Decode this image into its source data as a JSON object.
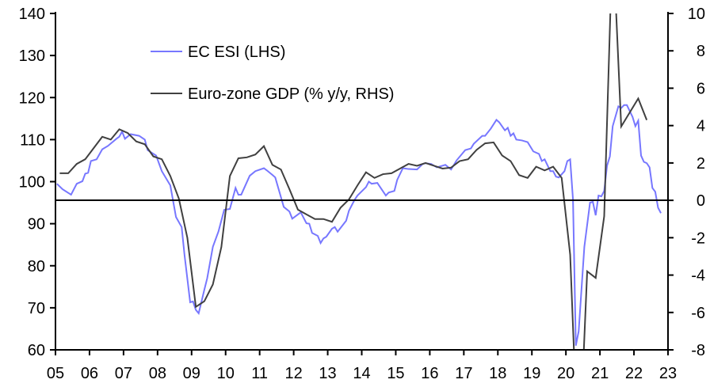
{
  "chart_data": {
    "type": "line",
    "title": "",
    "legend_placement": "top-left",
    "grid": false,
    "x_axis": {
      "range": [
        "2005-01",
        "2023-01"
      ],
      "tick_labels": [
        "05",
        "06",
        "07",
        "08",
        "09",
        "10",
        "11",
        "12",
        "13",
        "14",
        "15",
        "16",
        "17",
        "18",
        "19",
        "20",
        "21",
        "22",
        "23"
      ]
    },
    "y_left": {
      "range": [
        60,
        140
      ],
      "tick_labels": [
        "140",
        "130",
        "120",
        "110",
        "100",
        "90",
        "80",
        "70",
        "60"
      ]
    },
    "y_right": {
      "range": [
        -8,
        10
      ],
      "tick_labels": [
        "10",
        "8",
        "6",
        "4",
        "2",
        "0",
        "-2",
        "-4",
        "-6",
        "-8"
      ],
      "zero_line": true
    },
    "series": [
      {
        "name": "EC ESI (LHS)",
        "axis": "left",
        "color": "#7777ff",
        "frequency": "monthly",
        "points": [
          [
            "2005-01",
            99.5
          ],
          [
            "2005-03",
            98.2
          ],
          [
            "2005-06",
            96.9
          ],
          [
            "2005-08",
            99.5
          ],
          [
            "2005-10",
            100.1
          ],
          [
            "2005-11",
            101.9
          ],
          [
            "2005-12",
            102.1
          ],
          [
            "2006-01",
            104.9
          ],
          [
            "2006-03",
            105.3
          ],
          [
            "2006-05",
            107.7
          ],
          [
            "2006-07",
            108.5
          ],
          [
            "2006-10",
            110.2
          ],
          [
            "2006-11",
            110.7
          ],
          [
            "2006-12",
            111.9
          ],
          [
            "2007-01",
            110.2
          ],
          [
            "2007-03",
            111.3
          ],
          [
            "2007-06",
            110.9
          ],
          [
            "2007-08",
            110.0
          ],
          [
            "2007-09",
            107.5
          ],
          [
            "2007-12",
            106.2
          ],
          [
            "2008-02",
            102.5
          ],
          [
            "2008-05",
            99.1
          ],
          [
            "2008-07",
            91.6
          ],
          [
            "2008-09",
            89.2
          ],
          [
            "2008-10",
            82.6
          ],
          [
            "2008-12",
            71.3
          ],
          [
            "2009-01",
            71.5
          ],
          [
            "2009-02",
            69.5
          ],
          [
            "2009-03",
            68.7
          ],
          [
            "2009-05",
            74.3
          ],
          [
            "2009-06",
            77.0
          ],
          [
            "2009-08",
            84.5
          ],
          [
            "2009-10",
            88.2
          ],
          [
            "2009-12",
            93.3
          ],
          [
            "2010-02",
            93.5
          ],
          [
            "2010-04",
            98.5
          ],
          [
            "2010-05",
            96.9
          ],
          [
            "2010-06",
            96.9
          ],
          [
            "2010-09",
            101.4
          ],
          [
            "2010-11",
            102.5
          ],
          [
            "2011-02",
            103.2
          ],
          [
            "2011-03",
            102.7
          ],
          [
            "2011-05",
            101.6
          ],
          [
            "2011-06",
            101.0
          ],
          [
            "2011-09",
            94.0
          ],
          [
            "2011-11",
            92.9
          ],
          [
            "2011-12",
            91.2
          ],
          [
            "2012-03",
            92.7
          ],
          [
            "2012-05",
            90.1
          ],
          [
            "2012-06",
            90.0
          ],
          [
            "2012-07",
            87.8
          ],
          [
            "2012-09",
            87.1
          ],
          [
            "2012-10",
            85.4
          ],
          [
            "2012-11",
            86.5
          ],
          [
            "2012-12",
            86.9
          ],
          [
            "2013-02",
            88.8
          ],
          [
            "2013-03",
            89.2
          ],
          [
            "2013-04",
            88.1
          ],
          [
            "2013-07",
            90.7
          ],
          [
            "2013-08",
            93.1
          ],
          [
            "2013-10",
            95.7
          ],
          [
            "2013-11",
            96.7
          ],
          [
            "2014-02",
            98.7
          ],
          [
            "2014-03",
            100.0
          ],
          [
            "2014-04",
            99.5
          ],
          [
            "2014-06",
            99.7
          ],
          [
            "2014-07",
            98.7
          ],
          [
            "2014-09",
            96.7
          ],
          [
            "2014-10",
            97.4
          ],
          [
            "2014-12",
            97.8
          ],
          [
            "2015-01",
            100.4
          ],
          [
            "2015-03",
            103.2
          ],
          [
            "2015-05",
            103.0
          ],
          [
            "2015-08",
            102.9
          ],
          [
            "2015-10",
            104.2
          ],
          [
            "2015-11",
            104.4
          ],
          [
            "2016-01",
            104.2
          ],
          [
            "2016-03",
            103.4
          ],
          [
            "2016-05",
            103.8
          ],
          [
            "2016-06",
            104.0
          ],
          [
            "2016-08",
            102.9
          ],
          [
            "2016-10",
            105.1
          ],
          [
            "2017-01",
            107.5
          ],
          [
            "2017-03",
            107.9
          ],
          [
            "2017-04",
            109.0
          ],
          [
            "2017-07",
            110.9
          ],
          [
            "2017-08",
            110.9
          ],
          [
            "2017-10",
            112.6
          ],
          [
            "2017-12",
            114.7
          ],
          [
            "2018-01",
            114.1
          ],
          [
            "2018-03",
            112.2
          ],
          [
            "2018-04",
            112.8
          ],
          [
            "2018-05",
            110.9
          ],
          [
            "2018-06",
            111.5
          ],
          [
            "2018-07",
            110.0
          ],
          [
            "2018-09",
            109.8
          ],
          [
            "2018-11",
            109.4
          ],
          [
            "2019-01",
            107.2
          ],
          [
            "2019-03",
            106.6
          ],
          [
            "2019-04",
            104.9
          ],
          [
            "2019-05",
            105.3
          ],
          [
            "2019-07",
            102.5
          ],
          [
            "2019-08",
            102.5
          ],
          [
            "2019-09",
            101.2
          ],
          [
            "2019-10",
            101.0
          ],
          [
            "2019-12",
            102.5
          ],
          [
            "2020-01",
            104.9
          ],
          [
            "2020-02",
            105.3
          ],
          [
            "2020-03",
            95.7
          ],
          [
            "2020-04",
            61.0
          ],
          [
            "2020-05",
            64.4
          ],
          [
            "2020-07",
            84.5
          ],
          [
            "2020-09",
            95.0
          ],
          [
            "2020-10",
            95.2
          ],
          [
            "2020-11",
            92.0
          ],
          [
            "2020-12",
            96.7
          ],
          [
            "2021-01",
            96.5
          ],
          [
            "2021-02",
            97.8
          ],
          [
            "2021-03",
            103.8
          ],
          [
            "2021-04",
            106.0
          ],
          [
            "2021-05",
            113.2
          ],
          [
            "2021-07",
            117.9
          ],
          [
            "2021-08",
            117.5
          ],
          [
            "2021-09",
            118.2
          ],
          [
            "2021-10",
            118.2
          ],
          [
            "2021-12",
            115.4
          ],
          [
            "2022-01",
            113.2
          ],
          [
            "2022-02",
            114.5
          ],
          [
            "2022-03",
            106.2
          ],
          [
            "2022-04",
            104.7
          ],
          [
            "2022-05",
            104.4
          ],
          [
            "2022-06",
            103.4
          ],
          [
            "2022-07",
            98.5
          ],
          [
            "2022-08",
            97.6
          ],
          [
            "2022-09",
            93.8
          ],
          [
            "2022-10",
            92.5
          ]
        ]
      },
      {
        "name": "Euro-zone GDP (% y/y, RHS)",
        "axis": "right",
        "color": "#404040",
        "frequency": "quarterly",
        "start": "2005-Q1",
        "values": [
          1.45,
          1.45,
          1.95,
          2.2,
          2.8,
          3.4,
          3.25,
          3.8,
          3.6,
          3.15,
          3.0,
          2.35,
          2.2,
          1.3,
          0.1,
          -2.0,
          -5.7,
          -5.4,
          -4.5,
          -2.5,
          1.3,
          2.25,
          2.3,
          2.45,
          2.9,
          1.9,
          1.65,
          0.6,
          -0.5,
          -0.75,
          -1.0,
          -1.0,
          -1.15,
          -0.4,
          0.05,
          0.8,
          1.5,
          1.2,
          1.4,
          1.45,
          1.7,
          1.95,
          1.85,
          2.0,
          1.85,
          1.7,
          1.75,
          2.1,
          2.2,
          2.7,
          3.05,
          3.1,
          2.4,
          2.1,
          1.35,
          1.2,
          1.8,
          1.6,
          1.8,
          1.2,
          -2.9,
          -14.5,
          -3.8,
          -4.15,
          -0.85,
          14.2,
          3.95,
          4.7,
          5.45,
          4.3
        ]
      }
    ]
  }
}
